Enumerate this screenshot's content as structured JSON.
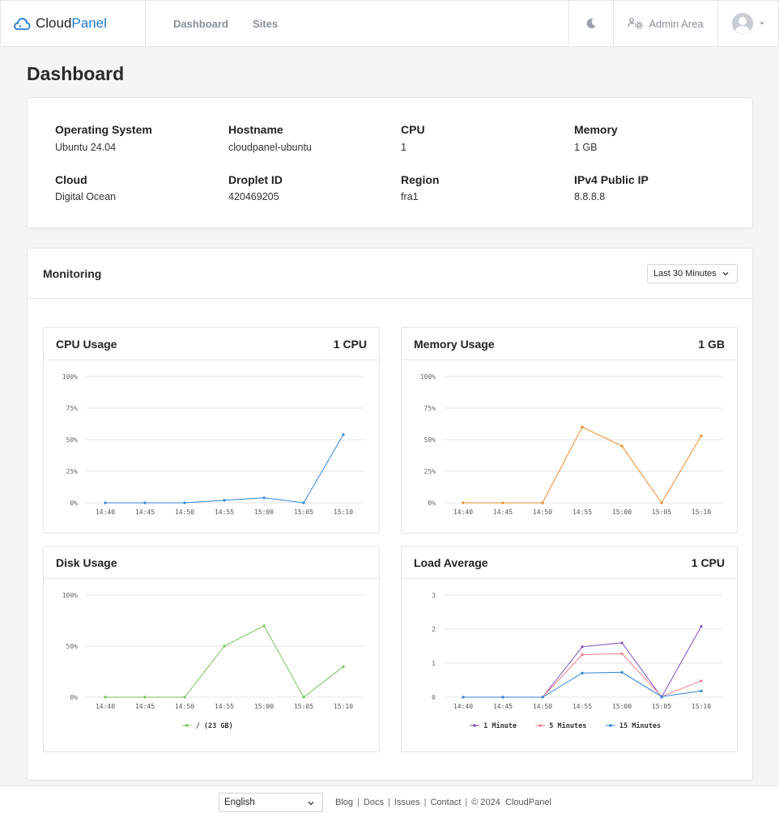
{
  "brand": {
    "name_part1": "Cloud",
    "name_part2": "Panel"
  },
  "nav": {
    "dashboard": "Dashboard",
    "sites": "Sites"
  },
  "header": {
    "admin_area": "Admin Area"
  },
  "page_title": "Dashboard",
  "server_info": [
    {
      "label": "Operating System",
      "value": "Ubuntu 24.04"
    },
    {
      "label": "Hostname",
      "value": "cloudpanel-ubuntu"
    },
    {
      "label": "CPU",
      "value": "1"
    },
    {
      "label": "Memory",
      "value": "1 GB"
    },
    {
      "label": "Cloud",
      "value": "Digital Ocean"
    },
    {
      "label": "Droplet ID",
      "value": "420469205"
    },
    {
      "label": "Region",
      "value": "fra1"
    },
    {
      "label": "IPv4 Public IP",
      "value": "8.8.8.8"
    }
  ],
  "monitoring": {
    "title": "Monitoring",
    "range_selected": "Last 30 Minutes"
  },
  "colors": {
    "accent": "#1f7bd6",
    "cpu": "#2f86d6",
    "memory": "#f08a2c",
    "disk": "#7ac25a",
    "load_1": "#7b4fc2",
    "load_5": "#f27b8a",
    "load_15": "#2f86d6"
  },
  "charts": [
    {
      "title": "CPU Usage",
      "badge": "1 CPU"
    },
    {
      "title": "Memory Usage",
      "badge": "1 GB"
    },
    {
      "title": "Disk Usage",
      "badge": ""
    },
    {
      "title": "Load Average",
      "badge": "1 CPU"
    }
  ],
  "chart_data": [
    {
      "type": "line",
      "title": "CPU Usage",
      "x": [
        "14:40",
        "14:45",
        "14:50",
        "14:55",
        "15:00",
        "15:05",
        "15:10"
      ],
      "yticks": [
        "0%",
        "25%",
        "50%",
        "75%",
        "100%"
      ],
      "ylim": [
        0,
        100
      ],
      "grid": true,
      "series": [
        {
          "values": [
            0,
            0,
            0,
            2,
            4,
            0,
            54
          ]
        }
      ]
    },
    {
      "type": "line",
      "title": "Memory Usage",
      "x": [
        "14:40",
        "14:45",
        "14:50",
        "14:55",
        "15:00",
        "15:05",
        "15:10"
      ],
      "yticks": [
        "0%",
        "25%",
        "50%",
        "75%",
        "100%"
      ],
      "ylim": [
        0,
        100
      ],
      "grid": true,
      "series": [
        {
          "values": [
            0,
            0,
            0,
            60,
            45,
            0,
            53
          ]
        }
      ]
    },
    {
      "type": "line",
      "title": "Disk Usage",
      "x": [
        "14:40",
        "14:45",
        "14:50",
        "14:55",
        "15:00",
        "15:05",
        "15:10"
      ],
      "yticks": [
        "0%",
        "50%",
        "100%"
      ],
      "ylim": [
        0,
        100
      ],
      "grid": true,
      "legend": "bottom",
      "series": [
        {
          "name": "/ (23 GB)",
          "values": [
            0,
            0,
            0,
            50,
            70,
            0,
            30
          ]
        }
      ]
    },
    {
      "type": "line",
      "title": "Load Average",
      "x": [
        "14:40",
        "14:45",
        "14:50",
        "14:55",
        "15:00",
        "15:05",
        "15:10"
      ],
      "yticks": [
        "0",
        "1",
        "2",
        "3"
      ],
      "ylim": [
        0,
        3
      ],
      "grid": true,
      "legend": "bottom",
      "series": [
        {
          "name": "1 Minute",
          "values": [
            0,
            0,
            0,
            1.48,
            1.6,
            0,
            2.08
          ]
        },
        {
          "name": "5 Minutes",
          "values": [
            0,
            0,
            0,
            1.25,
            1.28,
            0.02,
            0.48
          ]
        },
        {
          "name": "15 Minutes",
          "values": [
            0,
            0,
            0,
            0.71,
            0.73,
            0.02,
            0.18
          ]
        }
      ]
    }
  ],
  "footer": {
    "language": "English",
    "links": [
      "Blog",
      "Docs",
      "Issues",
      "Contact"
    ],
    "copyright": "© 2024",
    "brand": "CloudPanel"
  }
}
